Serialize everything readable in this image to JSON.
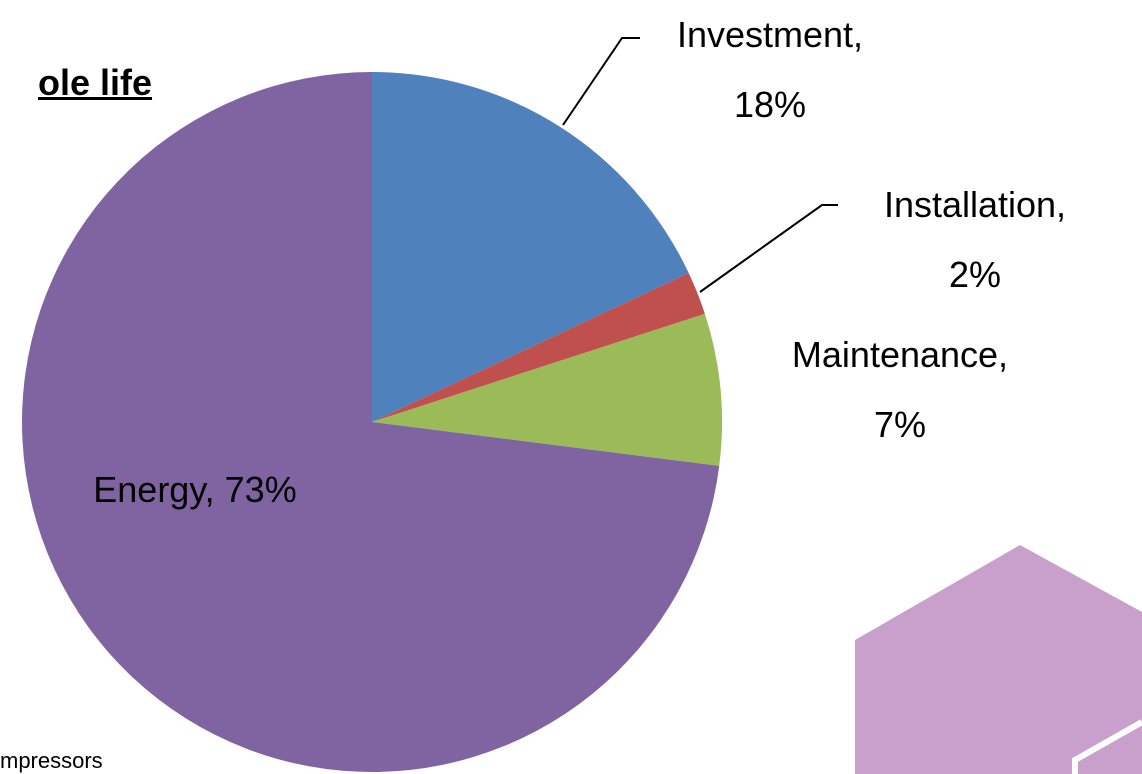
{
  "chart_data": {
    "type": "pie",
    "title": "ole life",
    "note": "mpressors",
    "categories": [
      "Investment",
      "Installation",
      "Maintenance",
      "Energy"
    ],
    "values": [
      18,
      2,
      7,
      73
    ],
    "value_labels": [
      "Investment, 18%",
      "Installation, 2%",
      "Maintenance, 7%",
      "Energy, 73%"
    ],
    "colors": [
      "#4f81bd",
      "#c0504d",
      "#9bbb59",
      "#8064a2"
    ]
  }
}
